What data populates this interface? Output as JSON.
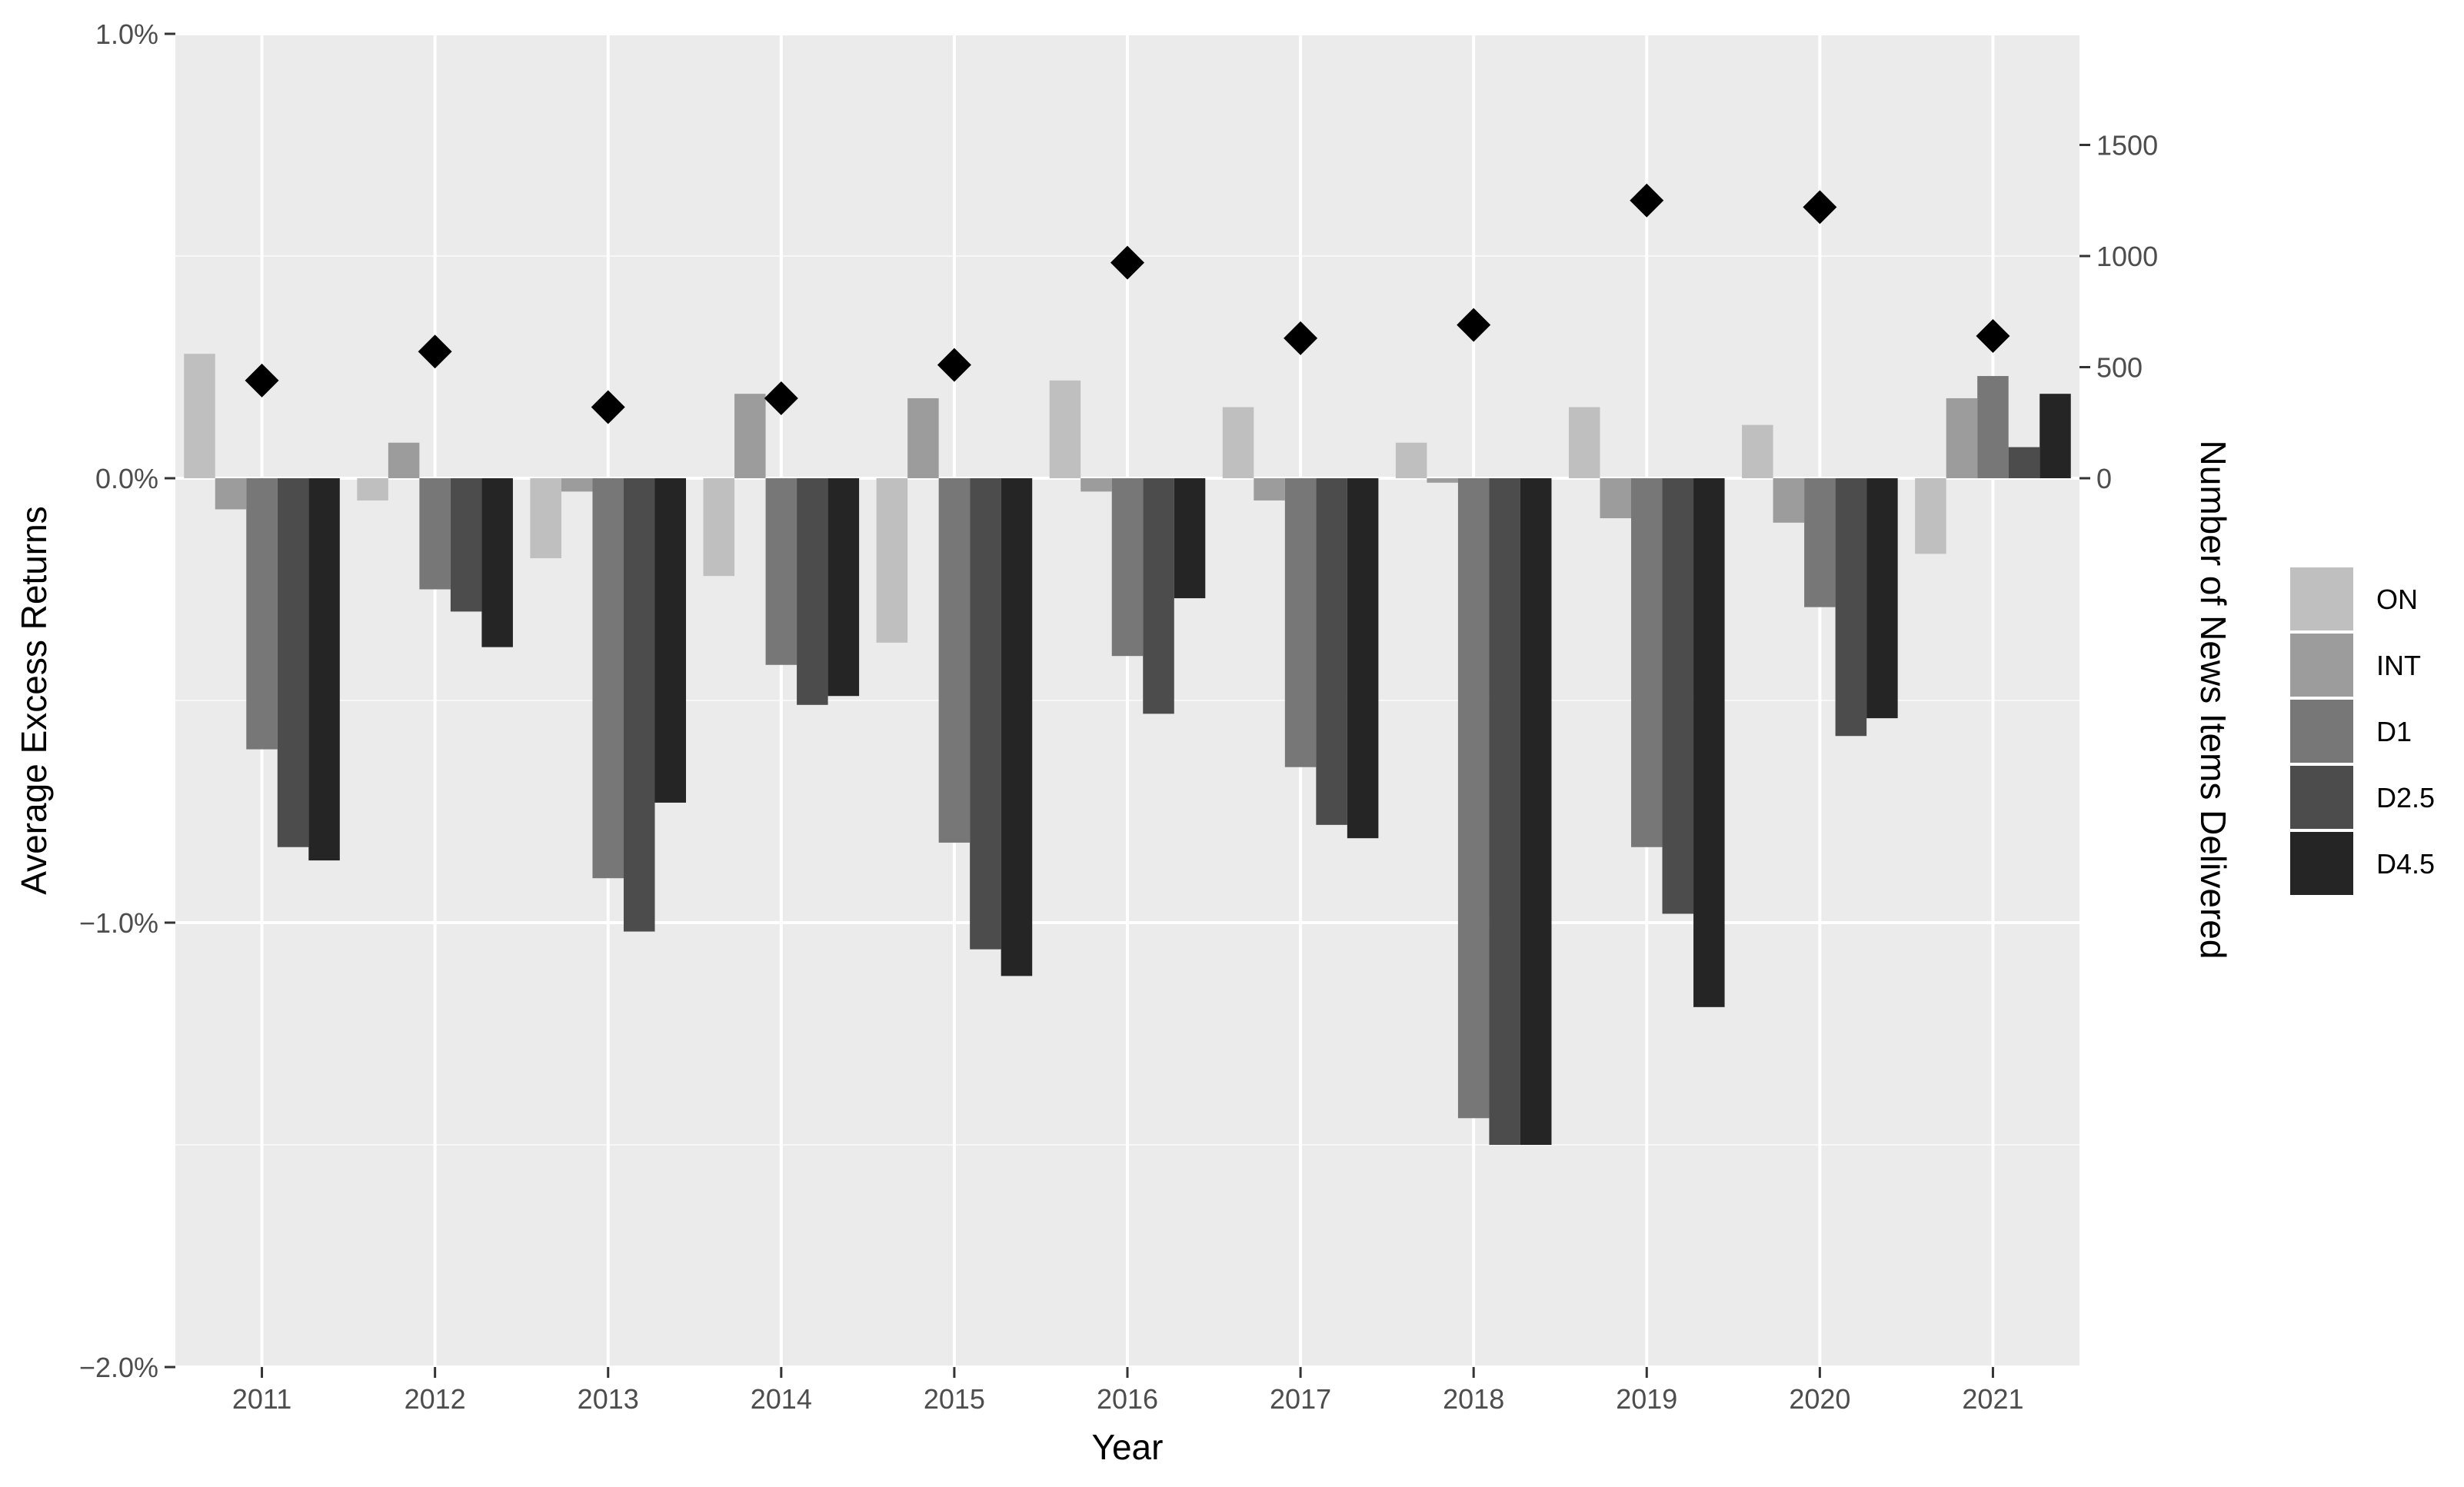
{
  "chart_data": {
    "type": "bar",
    "xlabel": "Year",
    "ylabel": "Average Excess Returns",
    "y2label": "Number of News Items Delivered",
    "categories": [
      "2011",
      "2012",
      "2013",
      "2014",
      "2015",
      "2016",
      "2017",
      "2018",
      "2019",
      "2020",
      "2021"
    ],
    "series": [
      {
        "name": "ON",
        "color": "#bfbfbf",
        "values": [
          0.28,
          -0.05,
          -0.18,
          -0.22,
          -0.37,
          0.22,
          0.16,
          0.08,
          0.16,
          0.12,
          -0.17
        ]
      },
      {
        "name": "INT",
        "color": "#9c9c9c",
        "values": [
          -0.07,
          0.08,
          -0.03,
          0.19,
          0.18,
          -0.03,
          -0.05,
          -0.01,
          -0.09,
          -0.1,
          0.18
        ]
      },
      {
        "name": "D1",
        "color": "#777777",
        "values": [
          -0.61,
          -0.25,
          -0.9,
          -0.42,
          -0.82,
          -0.4,
          -0.65,
          -1.44,
          -0.83,
          -0.29,
          0.23
        ]
      },
      {
        "name": "D2.5",
        "color": "#4c4c4c",
        "values": [
          -0.83,
          -0.3,
          -1.02,
          -0.51,
          -1.06,
          -0.53,
          -0.78,
          -1.5,
          -0.98,
          -0.58,
          0.07
        ]
      },
      {
        "name": "D4.5",
        "color": "#252525",
        "values": [
          -0.86,
          -0.38,
          -0.73,
          -0.49,
          -1.12,
          -0.27,
          -0.81,
          -1.5,
          -1.19,
          -0.54,
          0.19
        ]
      }
    ],
    "news_items": [
      440,
      570,
      320,
      360,
      510,
      970,
      630,
      690,
      1250,
      1220,
      640
    ],
    "ylim": [
      -2.0,
      1.0
    ],
    "y_ticks": [
      1.0,
      0.0,
      -1.0,
      -2.0
    ],
    "y_tick_labels": [
      "1.0%",
      "0.0%",
      "−1.0%",
      "−2.0%"
    ],
    "y2lim": [
      0,
      2000
    ],
    "y2_ticks": [
      0,
      500,
      1000,
      1500
    ],
    "y2_tick_labels": [
      "0",
      "500",
      "1000",
      "1500"
    ],
    "grid": true,
    "legend_position": "right",
    "panel_background": "#ebebeb",
    "marker_color": "#000000"
  }
}
